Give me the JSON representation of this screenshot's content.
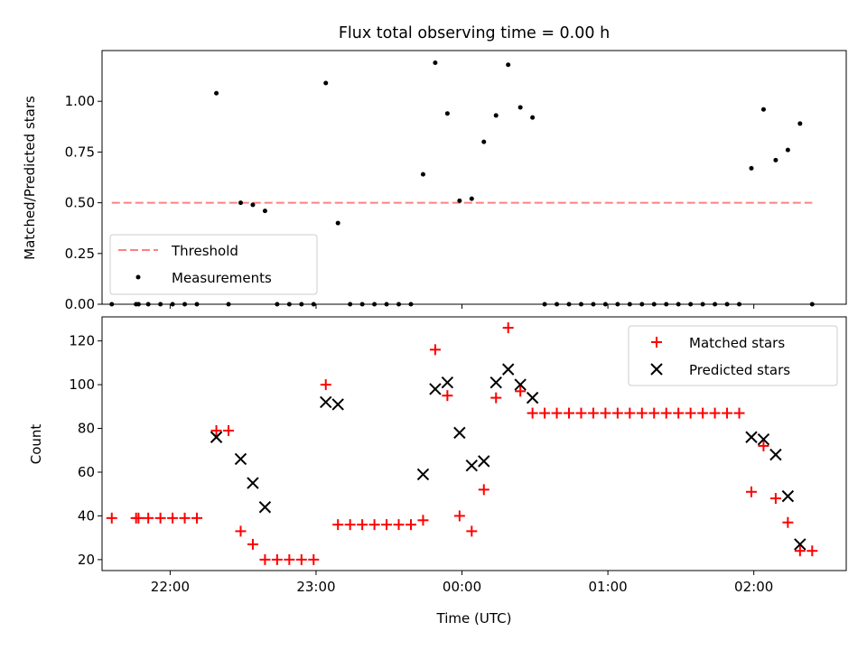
{
  "chart_data": [
    {
      "type": "scatter",
      "title": "Flux total observing time = 0.00 h",
      "ylabel": "Matched/Predicted stars",
      "xlabel": "",
      "ylim": [
        0,
        1.25
      ],
      "yticks": [
        "0.00",
        "0.25",
        "0.50",
        "0.75",
        "1.00"
      ],
      "x_tick_labels_shown": false,
      "threshold": {
        "name": "Threshold",
        "value": 0.5,
        "x_start": "21:36",
        "x_end": "02:24",
        "color": "#ff8080",
        "style": "dashed"
      },
      "legend": {
        "position": "lower-left",
        "entries": [
          "Threshold",
          "Measurements"
        ]
      },
      "series": [
        {
          "name": "Measurements",
          "color": "#000000",
          "marker": "dot",
          "points": [
            [
              "21:36",
              0.0
            ],
            [
              "21:46",
              0.0
            ],
            [
              "21:47",
              0.0
            ],
            [
              "21:51",
              0.0
            ],
            [
              "21:56",
              0.0
            ],
            [
              "22:01",
              0.0
            ],
            [
              "22:06",
              0.0
            ],
            [
              "22:11",
              0.0
            ],
            [
              "22:19",
              1.04
            ],
            [
              "22:24",
              0.0
            ],
            [
              "22:29",
              0.5
            ],
            [
              "22:34",
              0.49
            ],
            [
              "22:39",
              0.46
            ],
            [
              "22:44",
              0.0
            ],
            [
              "22:49",
              0.0
            ],
            [
              "22:54",
              0.0
            ],
            [
              "22:59",
              0.0
            ],
            [
              "23:04",
              1.09
            ],
            [
              "23:09",
              0.4
            ],
            [
              "23:14",
              0.0
            ],
            [
              "23:19",
              0.0
            ],
            [
              "23:24",
              0.0
            ],
            [
              "23:29",
              0.0
            ],
            [
              "23:34",
              0.0
            ],
            [
              "23:39",
              0.0
            ],
            [
              "23:44",
              0.64
            ],
            [
              "23:49",
              1.19
            ],
            [
              "23:54",
              0.94
            ],
            [
              "23:59",
              0.51
            ],
            [
              "00:04",
              0.52
            ],
            [
              "00:09",
              0.8
            ],
            [
              "00:14",
              0.93
            ],
            [
              "00:19",
              1.18
            ],
            [
              "00:24",
              0.97
            ],
            [
              "00:29",
              0.92
            ],
            [
              "00:34",
              0.0
            ],
            [
              "00:39",
              0.0
            ],
            [
              "00:44",
              0.0
            ],
            [
              "00:49",
              0.0
            ],
            [
              "00:54",
              0.0
            ],
            [
              "00:59",
              0.0
            ],
            [
              "01:04",
              0.0
            ],
            [
              "01:09",
              0.0
            ],
            [
              "01:14",
              0.0
            ],
            [
              "01:19",
              0.0
            ],
            [
              "01:24",
              0.0
            ],
            [
              "01:29",
              0.0
            ],
            [
              "01:34",
              0.0
            ],
            [
              "01:39",
              0.0
            ],
            [
              "01:44",
              0.0
            ],
            [
              "01:49",
              0.0
            ],
            [
              "01:54",
              0.0
            ],
            [
              "01:59",
              0.67
            ],
            [
              "02:04",
              0.96
            ],
            [
              "02:09",
              0.71
            ],
            [
              "02:14",
              0.76
            ],
            [
              "02:19",
              0.89
            ],
            [
              "02:24",
              0.0
            ]
          ]
        }
      ]
    },
    {
      "type": "scatter",
      "title": "",
      "ylabel": "Count",
      "xlabel": "Time (UTC)",
      "xlim": [
        "21:32",
        "02:38"
      ],
      "xticks": [
        "22:00",
        "23:00",
        "00:00",
        "01:00",
        "02:00"
      ],
      "ylim": [
        15,
        131
      ],
      "yticks": [
        "20",
        "40",
        "60",
        "80",
        "100",
        "120"
      ],
      "legend": {
        "position": "top-right",
        "entries": [
          "Matched stars",
          "Predicted stars"
        ]
      },
      "series": [
        {
          "name": "Matched stars",
          "color": "#ff0000",
          "marker": "plus",
          "points": [
            [
              "21:36",
              39
            ],
            [
              "21:46",
              39
            ],
            [
              "21:47",
              39
            ],
            [
              "21:51",
              39
            ],
            [
              "21:56",
              39
            ],
            [
              "22:01",
              39
            ],
            [
              "22:06",
              39
            ],
            [
              "22:11",
              39
            ],
            [
              "22:19",
              79
            ],
            [
              "22:24",
              79
            ],
            [
              "22:29",
              33
            ],
            [
              "22:34",
              27
            ],
            [
              "22:39",
              20
            ],
            [
              "22:44",
              20
            ],
            [
              "22:49",
              20
            ],
            [
              "22:54",
              20
            ],
            [
              "22:59",
              20
            ],
            [
              "23:04",
              100
            ],
            [
              "23:09",
              36
            ],
            [
              "23:14",
              36
            ],
            [
              "23:19",
              36
            ],
            [
              "23:24",
              36
            ],
            [
              "23:29",
              36
            ],
            [
              "23:34",
              36
            ],
            [
              "23:39",
              36
            ],
            [
              "23:44",
              38
            ],
            [
              "23:49",
              116
            ],
            [
              "23:54",
              95
            ],
            [
              "23:59",
              40
            ],
            [
              "00:04",
              33
            ],
            [
              "00:09",
              52
            ],
            [
              "00:14",
              94
            ],
            [
              "00:19",
              126
            ],
            [
              "00:24",
              97
            ],
            [
              "00:29",
              87
            ],
            [
              "00:34",
              87
            ],
            [
              "00:39",
              87
            ],
            [
              "00:44",
              87
            ],
            [
              "00:49",
              87
            ],
            [
              "00:54",
              87
            ],
            [
              "00:59",
              87
            ],
            [
              "01:04",
              87
            ],
            [
              "01:09",
              87
            ],
            [
              "01:14",
              87
            ],
            [
              "01:19",
              87
            ],
            [
              "01:24",
              87
            ],
            [
              "01:29",
              87
            ],
            [
              "01:34",
              87
            ],
            [
              "01:39",
              87
            ],
            [
              "01:44",
              87
            ],
            [
              "01:49",
              87
            ],
            [
              "01:54",
              87
            ],
            [
              "01:59",
              51
            ],
            [
              "02:04",
              72
            ],
            [
              "02:09",
              48
            ],
            [
              "02:14",
              37
            ],
            [
              "02:19",
              24
            ],
            [
              "02:24",
              24
            ]
          ]
        },
        {
          "name": "Predicted stars",
          "color": "#000000",
          "marker": "x",
          "points": [
            [
              "22:19",
              76
            ],
            [
              "22:29",
              66
            ],
            [
              "22:34",
              55
            ],
            [
              "22:39",
              44
            ],
            [
              "23:04",
              92
            ],
            [
              "23:09",
              91
            ],
            [
              "23:44",
              59
            ],
            [
              "23:49",
              98
            ],
            [
              "23:54",
              101
            ],
            [
              "23:59",
              78
            ],
            [
              "00:04",
              63
            ],
            [
              "00:09",
              65
            ],
            [
              "00:14",
              101
            ],
            [
              "00:19",
              107
            ],
            [
              "00:24",
              100
            ],
            [
              "00:29",
              94
            ],
            [
              "01:59",
              76
            ],
            [
              "02:04",
              75
            ],
            [
              "02:09",
              68
            ],
            [
              "02:14",
              49
            ],
            [
              "02:19",
              27
            ]
          ]
        }
      ]
    }
  ]
}
